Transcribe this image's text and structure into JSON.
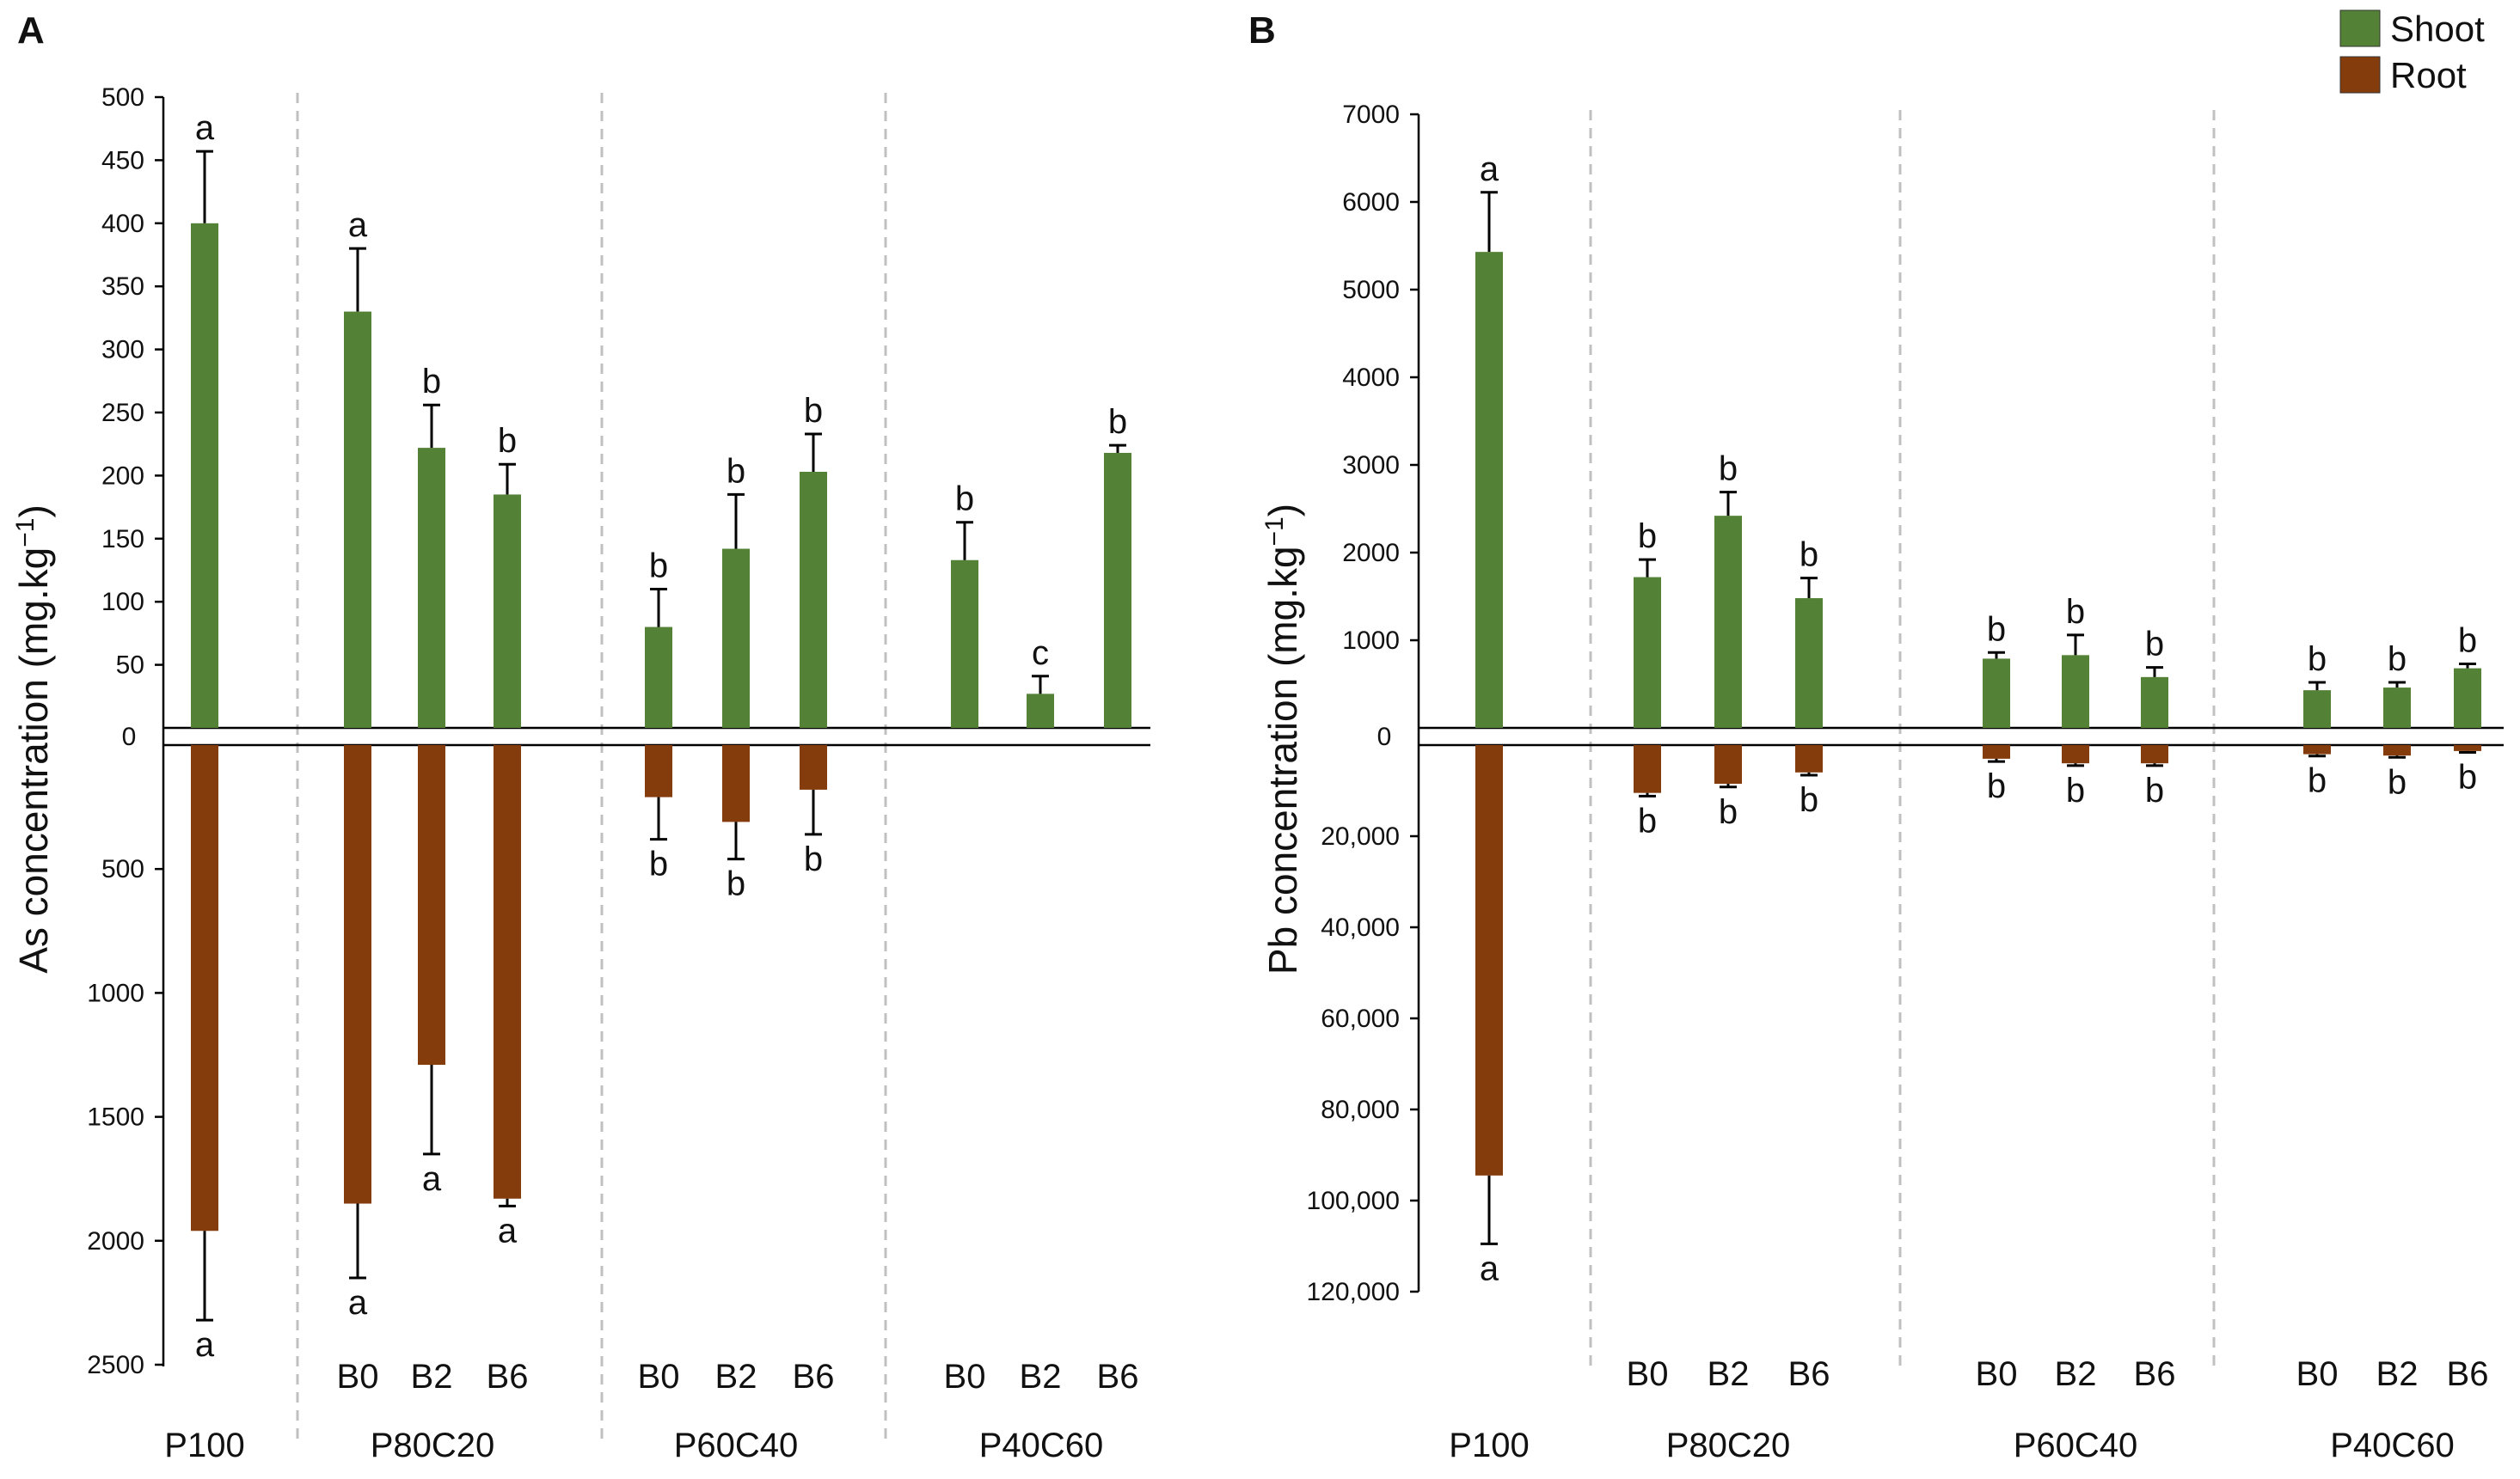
{
  "colors": {
    "shoot": "#538135",
    "root": "#843C0C",
    "axis": "#000000",
    "divider": "#C0C0C0"
  },
  "legend": {
    "placement": "top-right",
    "items": [
      {
        "label": "Shoot",
        "series": "shoot"
      },
      {
        "label": "Root",
        "series": "root"
      }
    ]
  },
  "chart_data": [
    {
      "panel": "A",
      "type": "bar",
      "ylabel": "As concentration (mg.kg",
      "ylabel_sup": "−1",
      "ylabel_close": ")",
      "zero_label": "0",
      "shoot_axis": {
        "range": [
          0,
          500
        ],
        "ticks": [
          "50",
          "100",
          "150",
          "200",
          "250",
          "300",
          "350",
          "400",
          "450",
          "500"
        ]
      },
      "root_axis": {
        "range": [
          0,
          2500
        ],
        "ticks": [
          "500",
          "1000",
          "1500",
          "2000",
          "2500"
        ]
      },
      "groups": [
        {
          "label": "P100",
          "bars": [
            {
              "sub": "",
              "shoot": 400,
              "shoot_err": 57,
              "shoot_sig": "a",
              "root": 1960,
              "root_err": 360,
              "root_sig": "a"
            }
          ]
        },
        {
          "label": "P80C20",
          "bars": [
            {
              "sub": "B0",
              "shoot": 330,
              "shoot_err": 50,
              "shoot_sig": "a",
              "root": 1850,
              "root_err": 300,
              "root_sig": "a"
            },
            {
              "sub": "B2",
              "shoot": 222,
              "shoot_err": 34,
              "shoot_sig": "b",
              "root": 1290,
              "root_err": 360,
              "root_sig": "a"
            },
            {
              "sub": "B6",
              "shoot": 185,
              "shoot_err": 24,
              "shoot_sig": "b",
              "root": 1830,
              "root_err": 30,
              "root_sig": "a"
            }
          ]
        },
        {
          "label": "P60C40",
          "bars": [
            {
              "sub": "B0",
              "shoot": 80,
              "shoot_err": 30,
              "shoot_sig": "b",
              "root": 210,
              "root_err": 170,
              "root_sig": "b"
            },
            {
              "sub": "B2",
              "shoot": 142,
              "shoot_err": 43,
              "shoot_sig": "b",
              "root": 310,
              "root_err": 150,
              "root_sig": "b"
            },
            {
              "sub": "B6",
              "shoot": 203,
              "shoot_err": 30,
              "shoot_sig": "b",
              "root": 180,
              "root_err": 180,
              "root_sig": "b"
            }
          ]
        },
        {
          "label": "P40C60",
          "bars": [
            {
              "sub": "B0",
              "shoot": 133,
              "shoot_err": 30,
              "shoot_sig": "b",
              "root": 0,
              "root_err": 0,
              "root_sig": ""
            },
            {
              "sub": "B2",
              "shoot": 27,
              "shoot_err": 14,
              "shoot_sig": "c",
              "root": 0,
              "root_err": 0,
              "root_sig": ""
            },
            {
              "sub": "B6",
              "shoot": 218,
              "shoot_err": 6,
              "shoot_sig": "b",
              "root": 0,
              "root_err": 0,
              "root_sig": ""
            }
          ]
        }
      ]
    },
    {
      "panel": "B",
      "type": "bar",
      "ylabel": "Pb concentration (mg.kg",
      "ylabel_sup": "−1",
      "ylabel_close": ")",
      "zero_label": "0",
      "shoot_axis": {
        "range": [
          0,
          7000
        ],
        "ticks": [
          "1000",
          "2000",
          "3000",
          "4000",
          "5000",
          "6000",
          "7000"
        ]
      },
      "root_axis": {
        "range": [
          0,
          120000
        ],
        "ticks": [
          "20,000",
          "40,000",
          "60,000",
          "80,000",
          "100,000",
          "120,000"
        ]
      },
      "groups": [
        {
          "label": "P100",
          "bars": [
            {
              "sub": "",
              "shoot": 5430,
              "shoot_err": 680,
              "shoot_sig": "a",
              "root": 94500,
              "root_err": 15000,
              "root_sig": "a"
            }
          ]
        },
        {
          "label": "P80C20",
          "bars": [
            {
              "sub": "B0",
              "shoot": 1720,
              "shoot_err": 200,
              "shoot_sig": "b",
              "root": 10500,
              "root_err": 700,
              "root_sig": "b"
            },
            {
              "sub": "B2",
              "shoot": 2420,
              "shoot_err": 270,
              "shoot_sig": "b",
              "root": 8500,
              "root_err": 700,
              "root_sig": "b"
            },
            {
              "sub": "B6",
              "shoot": 1480,
              "shoot_err": 230,
              "shoot_sig": "b",
              "root": 6000,
              "root_err": 600,
              "root_sig": "b"
            }
          ]
        },
        {
          "label": "P60C40",
          "bars": [
            {
              "sub": "B0",
              "shoot": 790,
              "shoot_err": 70,
              "shoot_sig": "b",
              "root": 3000,
              "root_err": 600,
              "root_sig": "b"
            },
            {
              "sub": "B2",
              "shoot": 830,
              "shoot_err": 230,
              "shoot_sig": "b",
              "root": 4000,
              "root_err": 500,
              "root_sig": "b"
            },
            {
              "sub": "B6",
              "shoot": 580,
              "shoot_err": 110,
              "shoot_sig": "b",
              "root": 4000,
              "root_err": 500,
              "root_sig": "b"
            }
          ]
        },
        {
          "label": "P40C60",
          "bars": [
            {
              "sub": "B0",
              "shoot": 430,
              "shoot_err": 90,
              "shoot_sig": "b",
              "root": 2000,
              "root_err": 400,
              "root_sig": "b"
            },
            {
              "sub": "B2",
              "shoot": 460,
              "shoot_err": 60,
              "shoot_sig": "b",
              "root": 2300,
              "root_err": 400,
              "root_sig": "b"
            },
            {
              "sub": "B6",
              "shoot": 680,
              "shoot_err": 50,
              "shoot_sig": "b",
              "root": 1300,
              "root_err": 300,
              "root_sig": "b"
            }
          ]
        }
      ]
    }
  ]
}
